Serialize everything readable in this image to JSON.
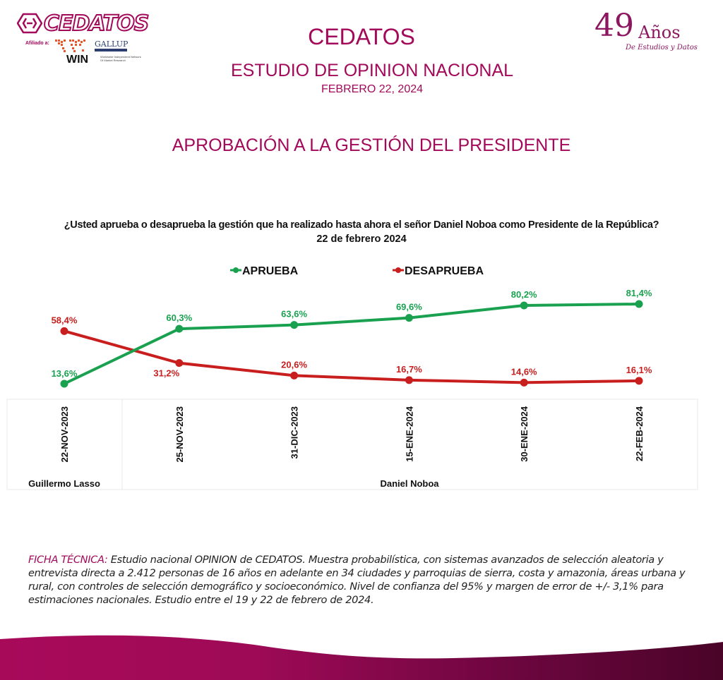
{
  "header": {
    "logo_left": {
      "brand": "CEDATOS",
      "affiliation_label": "Afiliado a:",
      "partner_gallup": "GALLUP",
      "partner_win": "WIN",
      "partner_win_subtitle": "Worldwide Independent Network Of Market Research"
    },
    "logo_right": {
      "years": "49",
      "years_word": "Años",
      "tagline": "De Estudios y Datos"
    },
    "title": "CEDATOS",
    "subtitle": "ESTUDIO DE OPINION NACIONAL",
    "date": "FEBRERO 22, 2024",
    "section_title": "APROBACIÓN A LA GESTIÓN DEL PRESIDENTE"
  },
  "colors": {
    "brand": "#a3095a",
    "approve": "#1aa150",
    "disapprove": "#c81e1e"
  },
  "chart_data": {
    "type": "line",
    "title": "¿Usted aprueba o desaprueba la gestión que ha realizado hasta ahora el señor Daniel Noboa como Presidente de la República?",
    "subtitle": "22 de febrero 2024",
    "xlabel": "",
    "ylabel": "",
    "ylim": [
      0,
      100
    ],
    "grid": false,
    "legend_position": "top-center",
    "categories": [
      "22-NOV-2023",
      "25-NOV-2023",
      "31-DIC-2023",
      "15-ENE-2024",
      "30-ENE-2024",
      "22-FEB-2024"
    ],
    "series": [
      {
        "name": "APRUEBA",
        "color": "#1aa150",
        "values": [
          13.6,
          60.3,
          63.6,
          69.6,
          80.2,
          81.4
        ],
        "labels": [
          "13,6%",
          "60,3%",
          "63,6%",
          "69,6%",
          "80,2%",
          "81,4%"
        ]
      },
      {
        "name": "DESAPRUEBA",
        "color": "#c81e1e",
        "values": [
          58.4,
          31.2,
          20.6,
          16.7,
          14.6,
          16.1
        ],
        "labels": [
          "58,4%",
          "31,2%",
          "20,6%",
          "16,7%",
          "14,6%",
          "16,1%"
        ]
      }
    ],
    "groups": [
      {
        "label": "Guillermo Lasso",
        "categories": [
          "22-NOV-2023"
        ]
      },
      {
        "label": "Daniel Noboa",
        "categories": [
          "25-NOV-2023",
          "31-DIC-2023",
          "15-ENE-2024",
          "30-ENE-2024",
          "22-FEB-2024"
        ]
      }
    ]
  },
  "footer": {
    "ficha_label": "FICHA TÉCNICA:",
    "ficha_text": " Estudio nacional OPINION de CEDATOS. Muestra probabilística, con sistemas avanzados de selección aleatoria y entrevista directa a 2.412  personas de 16 años en adelante en 34 ciudades y parroquias de sierra, costa y amazonia, áreas urbana y rural, con controles de selección demográfico y socioeconómico. Nivel de confianza del 95% y margen de error de +/- 3,1% para estimaciones nacionales. Estudio entre el 19 y 22 de febrero de 2024."
  }
}
